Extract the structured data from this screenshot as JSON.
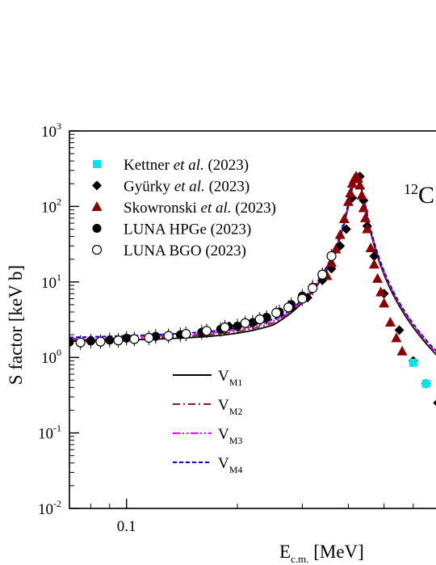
{
  "chart_data": {
    "type": "scatter",
    "title": "",
    "reaction_label": {
      "prefix": "12",
      "text": "C"
    },
    "xlabel": {
      "main": "E",
      "sub": "c.m.",
      "unit": " [MeV]"
    },
    "ylabel": "S factor [keV b]",
    "x_scale": "log",
    "y_scale": "log",
    "xlim": [
      0.07,
      0.75
    ],
    "ylim": [
      0.01,
      1000
    ],
    "x_ticks": [
      {
        "value": 0.1,
        "label": "0.1"
      }
    ],
    "y_ticks": [
      {
        "value": 0.01,
        "base": "10",
        "exp": "-2"
      },
      {
        "value": 0.1,
        "base": "10",
        "exp": "-1"
      },
      {
        "value": 1,
        "base": "10",
        "exp": "0"
      },
      {
        "value": 10,
        "base": "10",
        "exp": "1"
      },
      {
        "value": 100,
        "base": "10",
        "exp": "2"
      },
      {
        "value": 1000,
        "base": "10",
        "exp": "3"
      }
    ],
    "grid": false,
    "legend_data": [
      {
        "name": "Kettner",
        "italic": "et al.",
        "year": "(2023)",
        "marker": "square",
        "color": "#00e5ee"
      },
      {
        "name": "Gyürky",
        "italic": "et al.",
        "year": "(2023)",
        "marker": "diamond",
        "color": "#000000"
      },
      {
        "name": "Skowronski",
        "italic": "et al.",
        "year": "(2023)",
        "marker": "triangle",
        "color": "#8b0000"
      },
      {
        "name": "LUNA HPGe",
        "italic": "",
        "year": "(2023)",
        "marker": "circle-filled",
        "color": "#000000"
      },
      {
        "name": "LUNA BGO",
        "italic": "",
        "year": "(2023)",
        "marker": "circle-open",
        "color": "#000000"
      }
    ],
    "legend_models": [
      {
        "name": "V",
        "sub": "M1",
        "dash": "solid",
        "color": "#000000"
      },
      {
        "name": "V",
        "sub": "M2",
        "dash": "dashdot",
        "color": "#8b1a1a"
      },
      {
        "name": "V",
        "sub": "M3",
        "dash": "dashdotdot",
        "color": "#ff00ff"
      },
      {
        "name": "V",
        "sub": "M4",
        "dash": "dashed",
        "color": "#0000cc"
      }
    ],
    "resonance": {
      "energy": 0.422,
      "peak": 250,
      "width": 0.017,
      "background": 1.5
    },
    "series": [
      {
        "name": "Gyürky et al. (2023)",
        "marker": "diamond",
        "x": [
          0.19,
          0.24,
          0.28,
          0.31,
          0.34,
          0.36,
          0.38,
          0.395,
          0.41,
          0.43,
          0.44,
          0.45,
          0.47,
          0.5,
          0.55,
          0.6,
          0.65,
          0.7
        ],
        "y": [
          2.6,
          3.3,
          4.5,
          6.2,
          10.5,
          15,
          30,
          50,
          130,
          250,
          120,
          55,
          22,
          7,
          2.3,
          0.9,
          0.45,
          0.25
        ]
      },
      {
        "name": "Skowronski et al. (2023)",
        "marker": "triangle",
        "x": [
          0.35,
          0.36,
          0.37,
          0.38,
          0.39,
          0.4,
          0.405,
          0.41,
          0.415,
          0.42,
          0.425,
          0.43,
          0.435,
          0.44,
          0.445,
          0.45,
          0.46,
          0.47,
          0.48,
          0.49,
          0.5,
          0.52,
          0.54,
          0.56
        ],
        "y": [
          12,
          18,
          27,
          42,
          68,
          115,
          150,
          200,
          230,
          250,
          235,
          190,
          140,
          95,
          70,
          50,
          28,
          17,
          11,
          7.3,
          5.2,
          2.9,
          1.8,
          1.2
        ]
      },
      {
        "name": "LUNA HPGe (2023)",
        "marker": "circle-filled",
        "x": [
          0.07,
          0.08,
          0.09,
          0.1,
          0.12,
          0.14,
          0.16,
          0.18,
          0.2,
          0.22,
          0.24,
          0.26,
          0.28,
          0.3,
          0.32,
          0.34
        ],
        "y": [
          1.6,
          1.65,
          1.7,
          1.8,
          1.9,
          2.0,
          2.15,
          2.35,
          2.6,
          2.9,
          3.4,
          4.0,
          5.0,
          6.5,
          8.5,
          12
        ]
      },
      {
        "name": "LUNA BGO (2023)",
        "marker": "circle-open",
        "x": [
          0.063,
          0.075,
          0.085,
          0.095,
          0.105,
          0.115,
          0.13,
          0.145,
          0.165,
          0.185,
          0.21,
          0.23,
          0.255,
          0.275,
          0.3,
          0.32,
          0.34,
          0.36
        ],
        "y": [
          1.55,
          1.58,
          1.62,
          1.68,
          1.75,
          1.82,
          1.93,
          2.05,
          2.25,
          2.5,
          2.85,
          3.2,
          3.9,
          4.6,
          6.0,
          8.3,
          12.5,
          22
        ]
      },
      {
        "name": "Kettner et al. (2023)",
        "marker": "square",
        "x": [
          0.6,
          0.65
        ],
        "y": [
          0.85,
          0.45
        ]
      }
    ]
  }
}
